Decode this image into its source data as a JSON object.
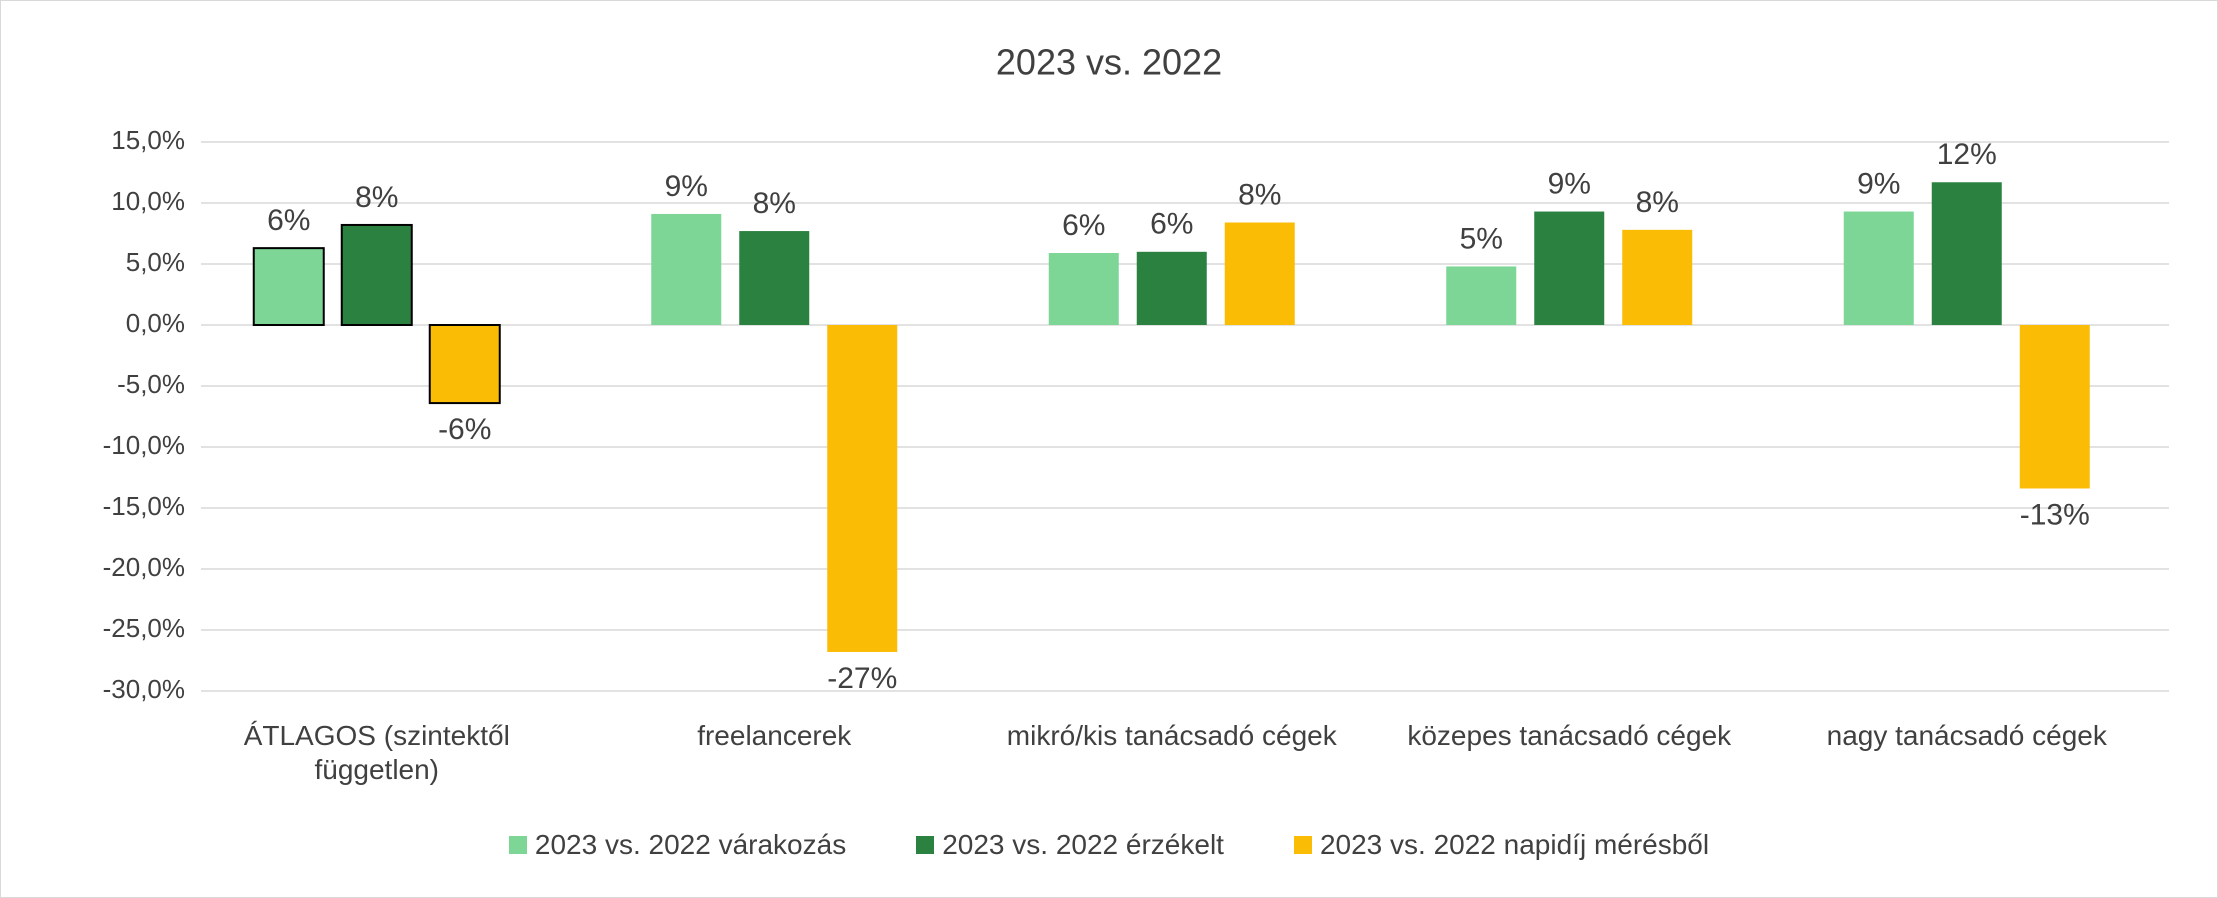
{
  "chart_data": {
    "type": "bar",
    "title": "2023 vs. 2022",
    "categories": [
      "ÁTLAGOS (szintektől független)",
      "freelancerek",
      "mikró/kis tanácsadó cégek",
      "közepes tanácsadó cégek",
      "nagy tanácsadó cégek"
    ],
    "series": [
      {
        "name": "2023 vs. 2022 várakozás",
        "color": "#7dd695",
        "values": [
          6.3,
          9.1,
          5.9,
          4.8,
          9.3
        ],
        "value_labels": [
          "6%",
          "9%",
          "6%",
          "5%",
          "9%"
        ]
      },
      {
        "name": "2023 vs. 2022 érzékelt",
        "color": "#2a8140",
        "values": [
          8.2,
          7.7,
          6.0,
          9.3,
          11.7
        ],
        "value_labels": [
          "8%",
          "8%",
          "6%",
          "9%",
          "12%"
        ]
      },
      {
        "name": "2023 vs. 2022 napidíj mérésből",
        "color": "#fbbc05",
        "values": [
          -6.4,
          -26.8,
          8.4,
          7.8,
          -13.4
        ],
        "value_labels": [
          "-6%",
          "-27%",
          "8%",
          "8%",
          "-13%"
        ]
      }
    ],
    "ylim": [
      -30,
      15
    ],
    "yticks": [
      {
        "value": -30,
        "label": "-30,0%"
      },
      {
        "value": -25,
        "label": "-25,0%"
      },
      {
        "value": -20,
        "label": "-20,0%"
      },
      {
        "value": -15,
        "label": "-15,0%"
      },
      {
        "value": -10,
        "label": "-10,0%"
      },
      {
        "value": -5,
        "label": "-5,0%"
      },
      {
        "value": 0,
        "label": "0,0%"
      },
      {
        "value": 5,
        "label": "5,0%"
      },
      {
        "value": 10,
        "label": "10,0%"
      },
      {
        "value": 15,
        "label": "15,0%"
      }
    ],
    "grid": true,
    "legend": "bottom",
    "outlined_category": 0,
    "outline_color": "#000000"
  }
}
